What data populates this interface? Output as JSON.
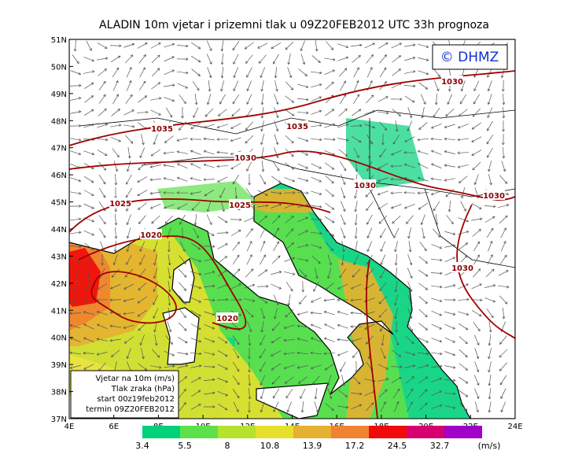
{
  "title": "ALADIN 10m vjetar i prizemni tlak u 09Z20FEB2012 UTC 33h prognoza",
  "logo": "© DHMZ",
  "lat_labels": [
    "51N",
    "50N",
    "49N",
    "48N",
    "47N",
    "46N",
    "45N",
    "44N",
    "43N",
    "42N",
    "41N",
    "40N",
    "39N",
    "38N",
    "37N"
  ],
  "lon_labels": [
    "4E",
    "6E",
    "8E",
    "10E",
    "12E",
    "14E",
    "16E",
    "18E",
    "20E",
    "22E",
    "24E"
  ],
  "isobar_labels": [
    "1030",
    "1035",
    "1035",
    "1030",
    "1030",
    "1030",
    "1025",
    "1025",
    "1020",
    "1030",
    "1020"
  ],
  "info_box": [
    "Vjetar na 10m (m/s)",
    "Tlak zraka (hPa)",
    "start 00z19feb2012",
    "termin 09Z20FEB2012"
  ],
  "colorbar": {
    "colors": [
      "#00d27a",
      "#5ee04a",
      "#b4e22e",
      "#e6e02c",
      "#e6b030",
      "#f08230",
      "#f00a0a",
      "#d8006e",
      "#a000c8"
    ],
    "labels": [
      3.4,
      5.5,
      8,
      10.8,
      13.9,
      17.2,
      24.5,
      32.7
    ],
    "unit": "(m/s)"
  }
}
